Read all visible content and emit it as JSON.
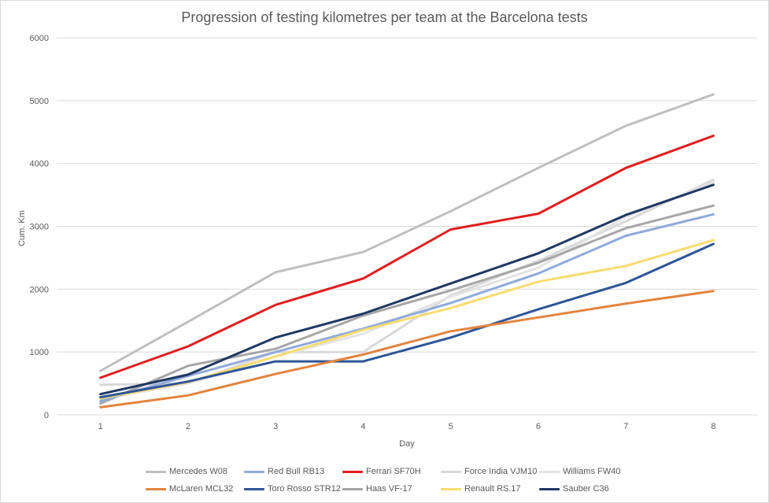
{
  "chart_data": {
    "type": "line",
    "title": "Progression of testing kilometres per team at the Barcelona tests",
    "xlabel": "Day",
    "ylabel": "Cum. Km",
    "ylim": [
      0,
      6000
    ],
    "yticks": [
      0,
      1000,
      2000,
      3000,
      4000,
      5000,
      6000
    ],
    "x": [
      1,
      2,
      3,
      4,
      5,
      6,
      7,
      8
    ],
    "grid": "horizontal",
    "legend_position": "bottom",
    "series": [
      {
        "name": "Mercedes W08",
        "color": "#bfbfbf",
        "values": [
          700,
          1480,
          2270,
          2590,
          3240,
          3930,
          4600,
          5100
        ]
      },
      {
        "name": "Red Bull RB13",
        "color": "#8faadc",
        "values": [
          220,
          620,
          1000,
          1370,
          1780,
          2250,
          2850,
          3190
        ]
      },
      {
        "name": "Ferrari SF70H",
        "color": "#e01e1e",
        "values": [
          590,
          1090,
          1750,
          2170,
          2950,
          3200,
          3930,
          4440
        ]
      },
      {
        "name": "Force India VJM10",
        "color": "#d9d9d9",
        "values": [
          480,
          500,
          1000,
          1000,
          1900,
          2450,
          3080,
          3740
        ]
      },
      {
        "name": "Williams FW40",
        "color": "#e3e3e3",
        "values": [
          250,
          500,
          930,
          1290,
          1880,
          2340,
          3150,
          3700
        ]
      },
      {
        "name": "McLaren MCL32",
        "color": "#e2843d",
        "values": [
          120,
          310,
          650,
          960,
          1330,
          1550,
          1770,
          1970
        ]
      },
      {
        "name": "Toro Rosso STR12",
        "color": "#2f5597",
        "values": [
          280,
          530,
          850,
          850,
          1230,
          1680,
          2100,
          2720
        ]
      },
      {
        "name": "Haas VF-17",
        "color": "#a6a6a6",
        "values": [
          180,
          780,
          1050,
          1580,
          1980,
          2420,
          2970,
          3330
        ]
      },
      {
        "name": "Renault RS.17",
        "color": "#f7dc6f",
        "values": [
          260,
          520,
          930,
          1350,
          1700,
          2120,
          2370,
          2780
        ]
      },
      {
        "name": "Sauber C36",
        "color": "#1f3864",
        "values": [
          330,
          640,
          1230,
          1610,
          2090,
          2570,
          3180,
          3660
        ]
      }
    ]
  }
}
